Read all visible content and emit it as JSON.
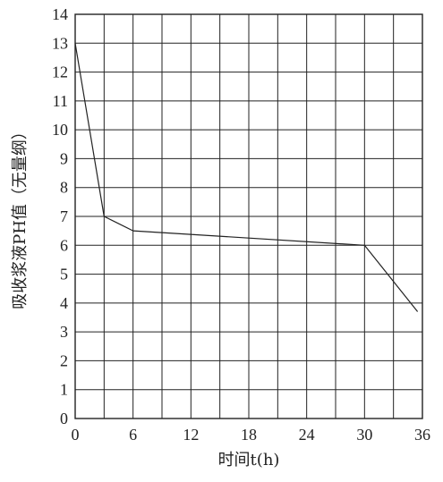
{
  "chart_data": {
    "type": "line",
    "xlabel": "时间t(h)",
    "ylabel": "吸收浆液PH值（无量纲）",
    "xlim": [
      0,
      36
    ],
    "ylim": [
      0,
      14
    ],
    "x_ticks": [
      0,
      6,
      12,
      18,
      24,
      30,
      36
    ],
    "y_ticks": [
      0,
      1,
      2,
      3,
      4,
      5,
      6,
      7,
      8,
      9,
      10,
      11,
      12,
      13,
      14
    ],
    "x_grid_step": 3,
    "grid": true,
    "series": [
      {
        "x": [
          0,
          3,
          6,
          30,
          35.5
        ],
        "y": [
          13,
          7,
          6.5,
          6,
          3.7
        ]
      }
    ],
    "colors": {
      "line": "#222222",
      "grid": "#222222",
      "background": "#ffffff"
    }
  }
}
